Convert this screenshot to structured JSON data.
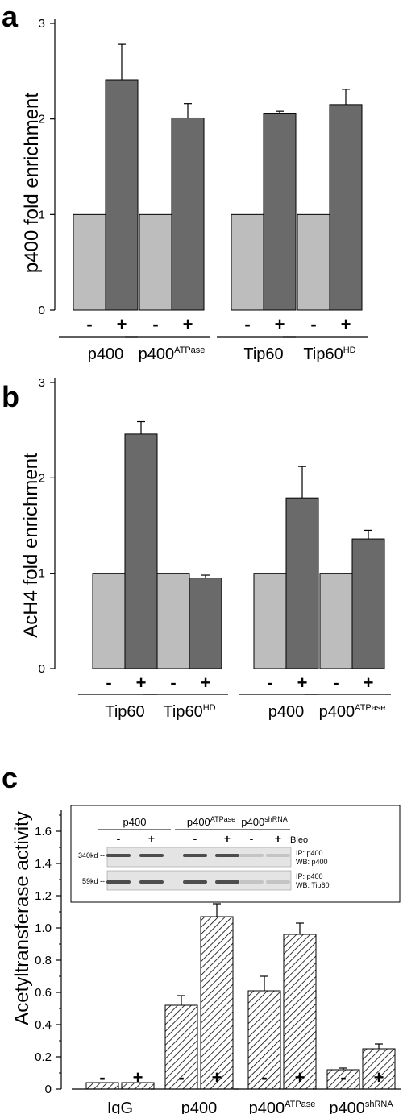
{
  "colors": {
    "light_bar": "#bdbdbd",
    "dark_bar": "#6a6a6a",
    "axis": "#000000",
    "hatch_bg": "#ffffff"
  },
  "chart_data": [
    {
      "panel": "a",
      "type": "bar",
      "ylabel": "p400 fold enrichment",
      "ylim": [
        0,
        3
      ],
      "yticks": [
        "0",
        "1",
        "2",
        "3"
      ],
      "treatment_labels": [
        "-",
        "+",
        "-",
        "+",
        "-",
        "+",
        "-",
        "+"
      ],
      "groups": [
        {
          "name": "p400",
          "sup": ""
        },
        {
          "name": "p400",
          "sup": "ATPase"
        },
        {
          "name": "Tip60",
          "sup": ""
        },
        {
          "name": "Tip60",
          "sup": "HD"
        }
      ],
      "values": [
        1.0,
        2.41,
        1.0,
        2.01,
        1.0,
        2.06,
        1.0,
        2.15
      ],
      "errors": [
        0,
        0.37,
        0,
        0.15,
        0,
        0.02,
        0,
        0.16
      ]
    },
    {
      "panel": "b",
      "type": "bar",
      "ylabel": "AcH4 fold enrichment",
      "ylim": [
        0,
        3
      ],
      "yticks": [
        "0",
        "1",
        "2",
        "3"
      ],
      "treatment_labels": [
        "-",
        "+",
        "-",
        "+",
        "-",
        "+",
        "-",
        "+"
      ],
      "groups": [
        {
          "name": "Tip60",
          "sup": ""
        },
        {
          "name": "Tip60",
          "sup": "HD"
        },
        {
          "name": "p400",
          "sup": ""
        },
        {
          "name": "p400",
          "sup": "ATPase"
        }
      ],
      "values": [
        1.0,
        2.46,
        1.0,
        0.95,
        1.0,
        1.79,
        1.0,
        1.36
      ],
      "errors": [
        0,
        0.13,
        0,
        0.03,
        0,
        0.33,
        0,
        0.09
      ]
    },
    {
      "panel": "c",
      "type": "bar",
      "ylabel": "Acetyltransferase activity",
      "ylim": [
        0,
        1.7
      ],
      "yticks": [
        "0",
        "0.2",
        "0.4",
        "0.6",
        "0.8",
        "1.0",
        "1.2",
        "1.4",
        "1.6"
      ],
      "treatment_labels": [
        "-",
        "+",
        "-",
        "+",
        "-",
        "+",
        "-",
        "+"
      ],
      "groups": [
        {
          "name": "IgG",
          "sup": ""
        },
        {
          "name": "p400",
          "sup": ""
        },
        {
          "name": "p400",
          "sup": "ATPase"
        },
        {
          "name": "p400",
          "sup": "shRNA"
        }
      ],
      "values": [
        0.04,
        0.04,
        0.52,
        1.07,
        0.61,
        0.96,
        0.12,
        0.25
      ],
      "errors": [
        0,
        0,
        0.06,
        0.08,
        0.09,
        0.07,
        0.01,
        0.03
      ]
    }
  ],
  "inset": {
    "groups": [
      {
        "name": "p400",
        "sup": ""
      },
      {
        "name": "p400",
        "sup": "ATPase"
      },
      {
        "name": "p400",
        "sup": "shRNA"
      }
    ],
    "lane_labels": [
      "-",
      "+",
      "-",
      "+",
      "-",
      "+"
    ],
    "bleo_label": ":Bleo",
    "blots": [
      {
        "marker": "340kd --",
        "ip": "IP: p400",
        "wb": "WB: p400"
      },
      {
        "marker": "59kd --",
        "ip": "IP: p400",
        "wb": "WB: Tip60"
      }
    ]
  }
}
